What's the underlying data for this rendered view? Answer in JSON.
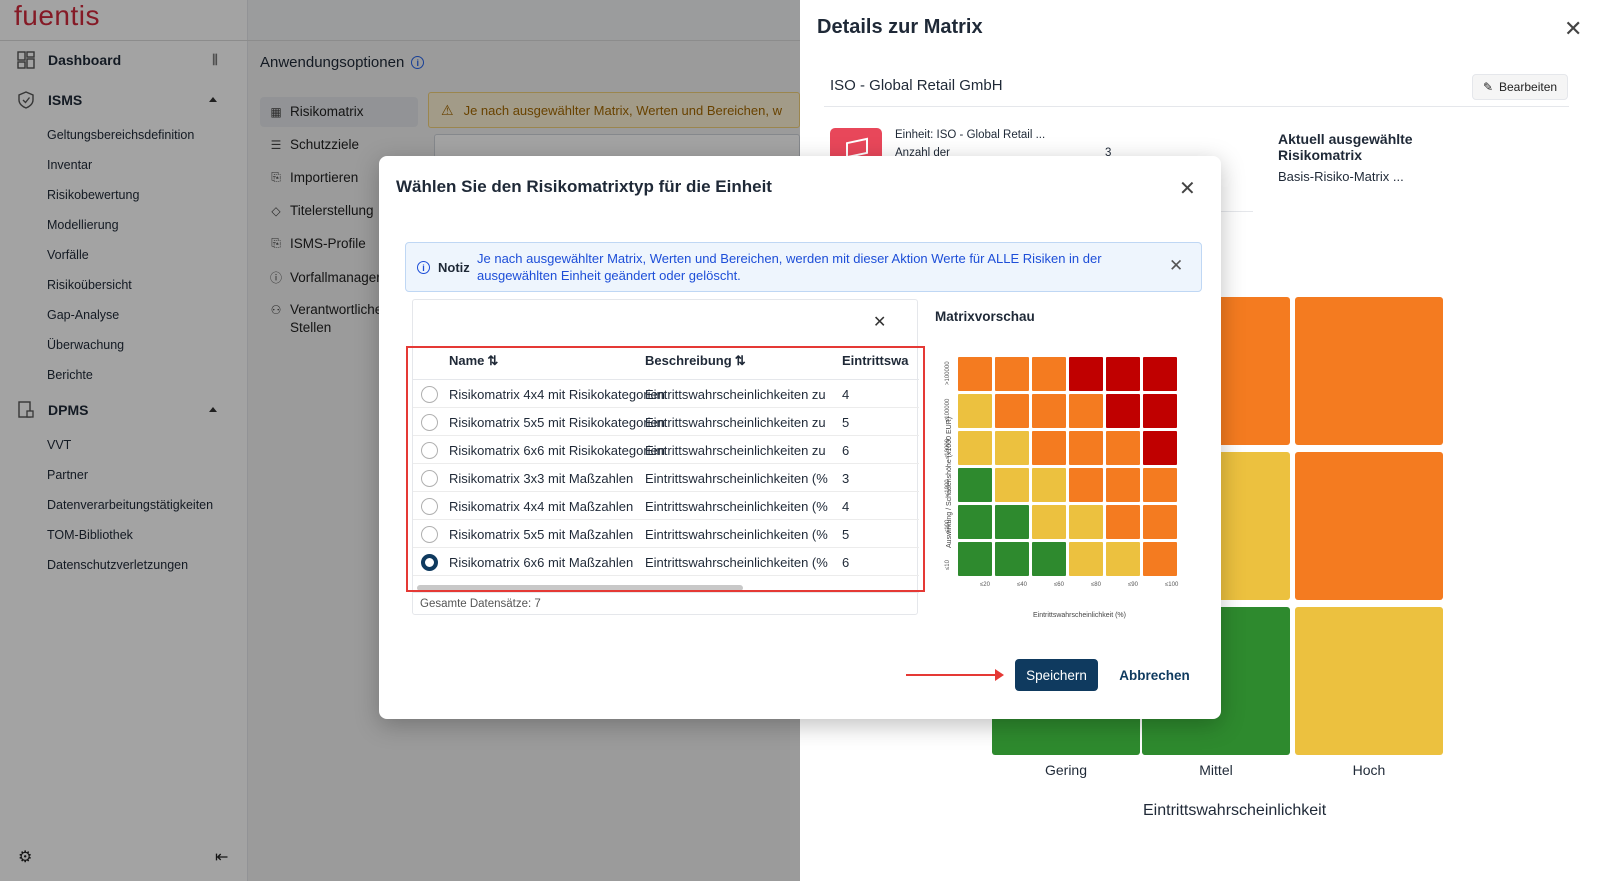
{
  "app": {
    "logo": "fuentis",
    "sidebar": {
      "dashboard": "Dashboard",
      "isms": "ISMS",
      "isms_items": [
        "Geltungsbereichsdefinition",
        "Inventar",
        "Risikobewertung",
        "Modellierung",
        "Vorfälle",
        "Risikoübersicht",
        "Gap-Analyse",
        "Überwachung",
        "Berichte"
      ],
      "dpms": "DPMS",
      "dpms_items": [
        "VVT",
        "Partner",
        "Datenverarbeitungstätigkeiten",
        "TOM-Bibliothek",
        "Datenschutzverletzungen"
      ]
    },
    "main": {
      "title": "Anwendungsoptionen",
      "menu": [
        "Risikomatrix",
        "Schutzziele",
        "Importieren",
        "Titelerstellung",
        "ISMS-Profile",
        "Vorfallmanager",
        "Verantwortliche",
        "Stellen"
      ],
      "warning": "Je nach ausgewählter Matrix, Werten und Bereichen, w"
    }
  },
  "drawer": {
    "title": "Details zur Matrix",
    "unit_name": "ISO - Global Retail GmbH",
    "edit_label": "Bearbeiten",
    "unit_line": "Einheit: ISO - Global Retail ...",
    "count_label": "Anzahl der",
    "count_value": "3",
    "current_label": "Aktuell ausgewählte Risikomatrix",
    "current_value": "Basis-Risiko-Matrix ...",
    "x_labels": [
      "Gering",
      "Mittel",
      "Hoch"
    ],
    "x_axis": "Eintrittswahrscheinlichkeit",
    "colors": {
      "orange": "#f47b20",
      "yellow": "#ecc13f",
      "green": "#2e8a2e"
    }
  },
  "modal": {
    "title": "Wählen Sie den Risikomatrixtyp für die Einheit",
    "note_label": "Notiz",
    "note_text": "Je nach ausgewählter Matrix, Werten und Bereichen, werden mit dieser Aktion Werte für ALLE Risiken in der ausgewählten Einheit geändert oder gelöscht.",
    "table": {
      "headers": [
        "Name",
        "Beschreibung",
        "Eintrittswa"
      ],
      "rows": [
        {
          "name": "Risikomatrix 4x4 mit Risikokategorien",
          "desc": "Eintrittswahrscheinlichkeiten zu",
          "n": "4",
          "selected": false
        },
        {
          "name": "Risikomatrix 5x5 mit Risikokategorien",
          "desc": "Eintrittswahrscheinlichkeiten zu",
          "n": "5",
          "selected": false
        },
        {
          "name": "Risikomatrix 6x6 mit Risikokategorien",
          "desc": "Eintrittswahrscheinlichkeiten zu",
          "n": "6",
          "selected": false
        },
        {
          "name": "Risikomatrix 3x3 mit Maßzahlen",
          "desc": "Eintrittswahrscheinlichkeiten (%",
          "n": "3",
          "selected": false
        },
        {
          "name": "Risikomatrix 4x4 mit Maßzahlen",
          "desc": "Eintrittswahrscheinlichkeiten (%",
          "n": "4",
          "selected": false
        },
        {
          "name": "Risikomatrix 5x5 mit Maßzahlen",
          "desc": "Eintrittswahrscheinlichkeiten (%",
          "n": "5",
          "selected": false
        },
        {
          "name": "Risikomatrix 6x6 mit Maßzahlen",
          "desc": "Eintrittswahrscheinlichkeiten (%",
          "n": "6",
          "selected": true
        }
      ],
      "total": "Gesamte Datensätze: 7"
    },
    "preview": {
      "title": "Matrixvorschau",
      "y_axis": "Auswirkung / Schadenshöhe (x1000 EUR)",
      "y_ticks": [
        "≤10",
        "≤100",
        "≤1000",
        "≤10000",
        "≤100000",
        ">100000"
      ],
      "x_axis": "Eintrittswahrscheinlichkeit (%)",
      "x_ticks": [
        "≤20",
        "≤40",
        "≤60",
        "≤80",
        "≤90",
        "≤100"
      ],
      "colors": {
        "red": "#c00000",
        "orange": "#f47b20",
        "yellow": "#ecc13f",
        "green": "#2e8a2e"
      }
    },
    "save_label": "Speichern",
    "cancel_label": "Abbrechen"
  }
}
